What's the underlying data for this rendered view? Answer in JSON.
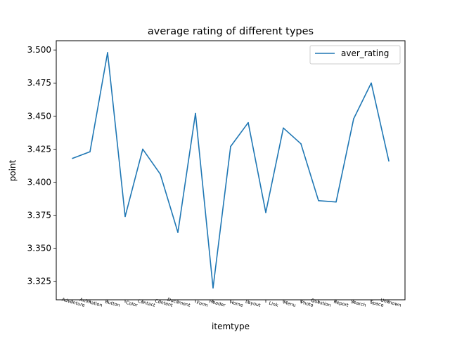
{
  "chart_data": {
    "type": "line",
    "title": "average rating of different types",
    "xlabel": "itemtype",
    "ylabel": "point",
    "categories": [
      "Adventure",
      "Animation",
      "Button",
      "Color",
      "Contact",
      "Content",
      "Document",
      "Form",
      "Header",
      "Home",
      "Layout",
      "Link",
      "Menu",
      "Photo",
      "Question",
      "Report",
      "Search",
      "Space",
      "Unknown"
    ],
    "series": [
      {
        "name": "aver_rating",
        "color": "#1f77b4",
        "values": [
          3.418,
          3.423,
          3.498,
          3.374,
          3.425,
          3.406,
          3.362,
          3.452,
          3.32,
          3.427,
          3.445,
          3.377,
          3.441,
          3.429,
          3.386,
          3.385,
          3.448,
          3.475,
          3.416
        ]
      }
    ],
    "yticks": [
      "3.325",
      "3.350",
      "3.375",
      "3.400",
      "3.425",
      "3.450",
      "3.475",
      "3.500"
    ],
    "ylim": [
      3.311,
      3.507
    ],
    "grid": false,
    "legend": "top-right"
  }
}
